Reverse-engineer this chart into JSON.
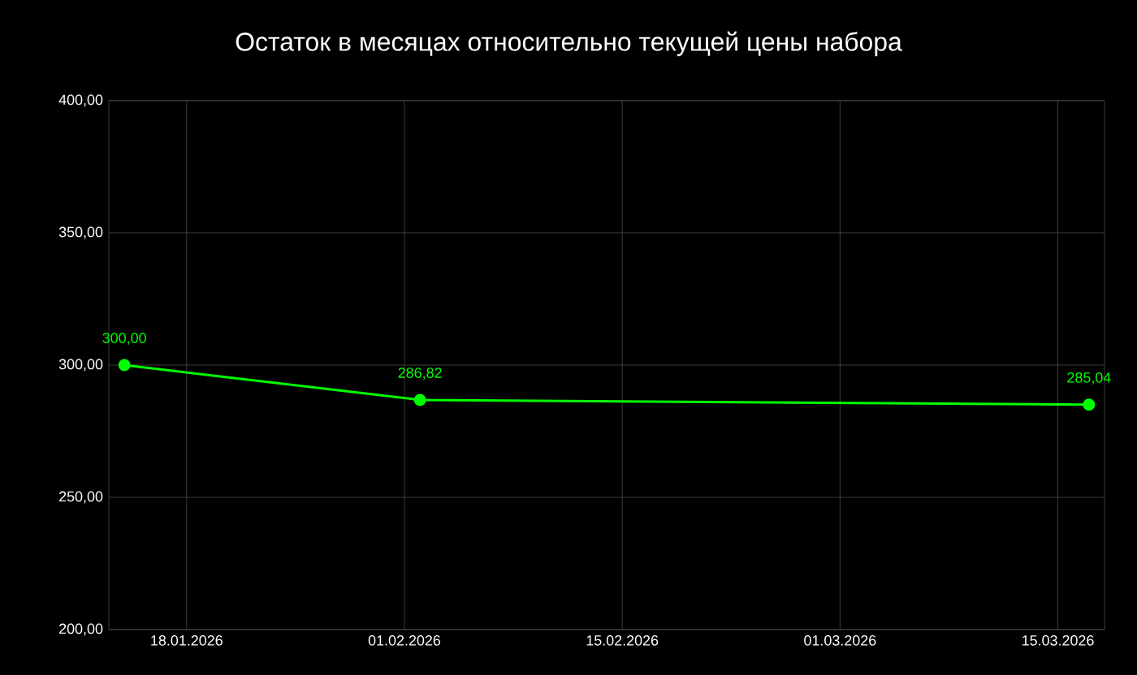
{
  "chart_data": {
    "type": "line",
    "title": "Остаток в месяцах относительно текущей цены набора",
    "x": [
      "2026-01-14",
      "2026-02-02",
      "2026-03-17"
    ],
    "values": [
      300.0,
      286.82,
      285.04
    ],
    "value_labels": [
      "300,00",
      "286,82",
      "285,04"
    ],
    "color": "#00ff00",
    "marker": "circle",
    "grid": true,
    "xlim": [
      "2026-01-13",
      "2026-03-18"
    ],
    "xticks": [
      {
        "value": "2026-01-18",
        "label": "18.01.2026"
      },
      {
        "value": "2026-02-01",
        "label": "01.02.2026"
      },
      {
        "value": "2026-02-15",
        "label": "15.02.2026"
      },
      {
        "value": "2026-03-01",
        "label": "01.03.2026"
      },
      {
        "value": "2026-03-15",
        "label": "15.03.2026"
      }
    ],
    "ylim": [
      200,
      400
    ],
    "yticks": [
      {
        "value": 200,
        "label": "200,00"
      },
      {
        "value": 250,
        "label": "250,00"
      },
      {
        "value": 300,
        "label": "300,00"
      },
      {
        "value": 350,
        "label": "350,00"
      },
      {
        "value": 400,
        "label": "400,00"
      }
    ]
  }
}
